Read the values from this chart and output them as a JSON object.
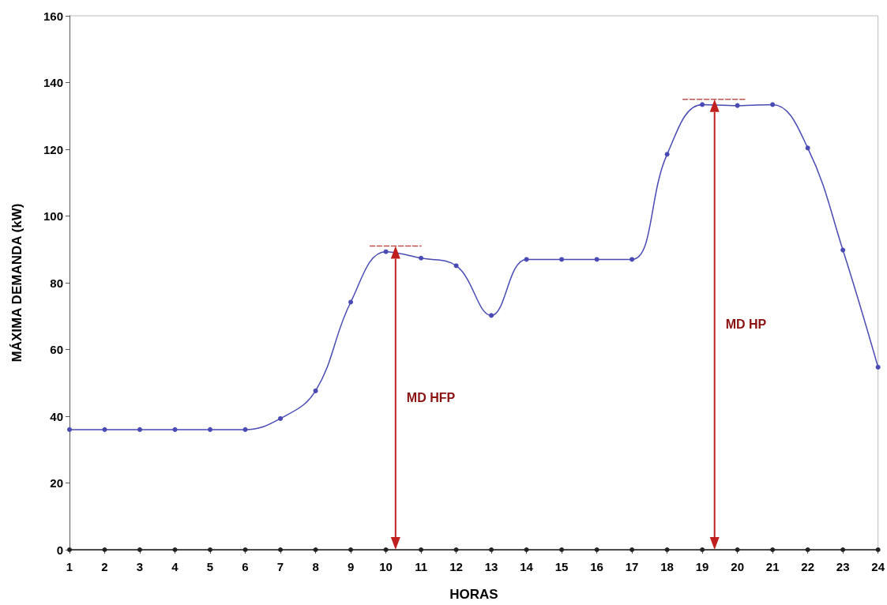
{
  "chart_data": {
    "type": "line",
    "xlabel": "HORAS",
    "ylabel": "MÁXIMA DEMANDA (kW)",
    "x": [
      1,
      2,
      3,
      4,
      5,
      6,
      7,
      8,
      9,
      10,
      11,
      12,
      13,
      14,
      15,
      16,
      17,
      18,
      19,
      20,
      21,
      22,
      23,
      24
    ],
    "series": [
      {
        "color": "#4a4ab4",
        "values": [
          36,
          36,
          36,
          36,
          36,
          36,
          39.3,
          47.6,
          74.2,
          89.3,
          87.4,
          85.1,
          70.2,
          87,
          87,
          87,
          87,
          118.5,
          133.4,
          133.1,
          133.4,
          120.4,
          89.8,
          54.7
        ]
      },
      {
        "color": "#222222",
        "values": [
          0,
          0,
          0,
          0,
          0,
          0,
          0,
          0,
          0,
          0,
          0,
          0,
          0,
          0,
          0,
          0,
          0,
          0,
          0,
          0,
          0,
          0,
          0,
          0
        ]
      },
      {
        "color": "#c0504d",
        "line_style": "dashed",
        "marker": "none",
        "x": [
          9.55,
          11.0
        ],
        "values": [
          91,
          91
        ]
      },
      {
        "color": "#c0504d",
        "line_style": "dashed",
        "marker": "none",
        "x": [
          18.45,
          20.25
        ],
        "values": [
          135,
          135
        ]
      }
    ],
    "annotations": [
      "MD HFP",
      "MD HP"
    ],
    "xlim": [
      1,
      24
    ],
    "xticks": [
      1,
      2,
      3,
      4,
      5,
      6,
      7,
      8,
      9,
      10,
      11,
      12,
      13,
      14,
      15,
      16,
      17,
      18,
      19,
      20,
      21,
      22,
      23,
      24
    ],
    "ylim": [
      0,
      160
    ],
    "yticks": [
      0,
      20,
      40,
      60,
      80,
      100,
      120,
      140,
      160
    ],
    "grid": false,
    "marker": "circle",
    "line_style": "solid"
  }
}
